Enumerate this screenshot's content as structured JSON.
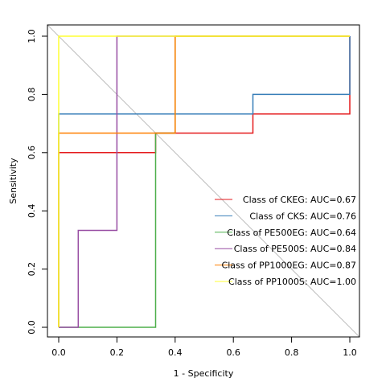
{
  "chart_data": {
    "type": "line",
    "title": "",
    "xlabel": "1 - Specificity",
    "ylabel": "Sensitivity",
    "xlim": [
      0,
      1
    ],
    "ylim": [
      0,
      1
    ],
    "xticks": [
      "0.0",
      "0.2",
      "0.4",
      "0.6",
      "0.8",
      "1.0"
    ],
    "yticks": [
      "0.0",
      "0.2",
      "0.4",
      "0.6",
      "0.8",
      "1.0"
    ],
    "diagonal_reference": true,
    "grid": false,
    "legend_position": "bottom-right",
    "series": [
      {
        "name": "Class of CKEG: AUC=0.67",
        "color": "#e41a1c",
        "points": [
          [
            0,
            0
          ],
          [
            0,
            0.6
          ],
          [
            0.333,
            0.6
          ],
          [
            0.333,
            0.667
          ],
          [
            0.667,
            0.667
          ],
          [
            0.667,
            0.733
          ],
          [
            1,
            0.733
          ],
          [
            1,
            1
          ]
        ]
      },
      {
        "name": "Class of CKS: AUC=0.76",
        "color": "#377eb8",
        "points": [
          [
            0,
            0
          ],
          [
            0,
            0.733
          ],
          [
            0.667,
            0.733
          ],
          [
            0.667,
            0.8
          ],
          [
            1,
            0.8
          ],
          [
            1,
            1
          ]
        ]
      },
      {
        "name": "Class of PE500EG: AUC=0.64",
        "color": "#4daf4a",
        "points": [
          [
            0,
            0
          ],
          [
            0.333,
            0
          ],
          [
            0.333,
            0.667
          ],
          [
            0.4,
            0.667
          ],
          [
            0.4,
            1
          ],
          [
            1,
            1
          ]
        ]
      },
      {
        "name": "Class of PE500S: AUC=0.84",
        "color": "#984ea3",
        "points": [
          [
            0,
            0
          ],
          [
            0.067,
            0
          ],
          [
            0.067,
            0.333
          ],
          [
            0.2,
            0.333
          ],
          [
            0.2,
            1
          ],
          [
            1,
            1
          ]
        ]
      },
      {
        "name": "Class of PP1000EG: AUC=0.87",
        "color": "#ff7f00",
        "points": [
          [
            0,
            0
          ],
          [
            0,
            0.667
          ],
          [
            0.4,
            0.667
          ],
          [
            0.4,
            1
          ],
          [
            1,
            1
          ]
        ]
      },
      {
        "name": "Class of PP1000S: AUC=1.00",
        "color": "#ffff33",
        "points": [
          [
            0,
            0
          ],
          [
            0,
            1
          ],
          [
            1,
            1
          ]
        ]
      }
    ]
  }
}
